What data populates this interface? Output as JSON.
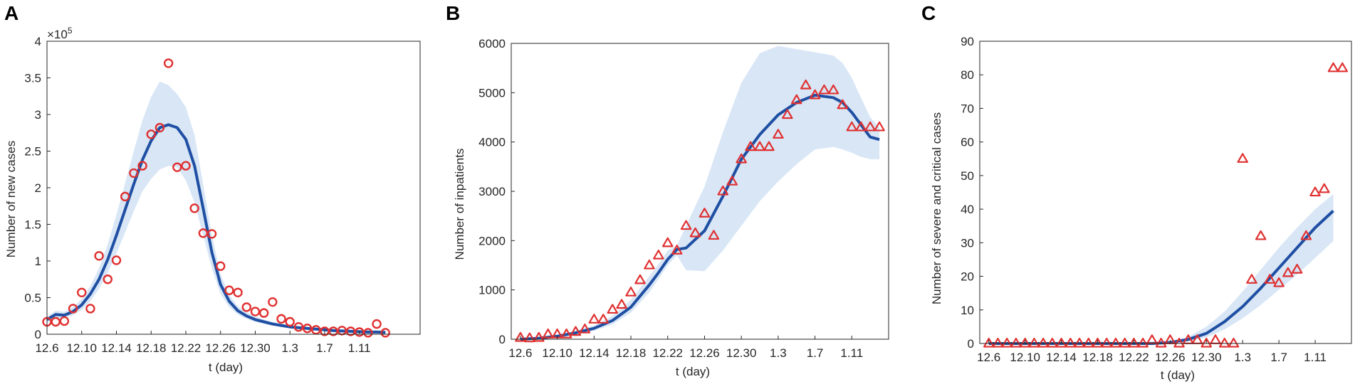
{
  "colors": {
    "fit": "#1f4fa3",
    "band": "#d8e6f6",
    "marker": "#e03030",
    "axis": "#262626"
  },
  "chart_data": [
    {
      "panel": "A",
      "type": "scatter",
      "marker": "circle",
      "xlabel": "t (day)",
      "ylabel": "Number of new cases",
      "y_exponent_base": "×10",
      "y_exponent_power": "5",
      "xlim": [
        0,
        43
      ],
      "ylim": [
        0,
        4
      ],
      "x_tick_values": [
        0,
        4,
        8,
        12,
        16,
        20,
        24,
        28,
        32,
        36
      ],
      "x_tick_labels": [
        "12.6",
        "12.10",
        "12.14",
        "12.18",
        "12.22",
        "12.26",
        "12.30",
        "1.3",
        "1.7",
        "1.11"
      ],
      "y_tick_values": [
        0,
        0.5,
        1,
        1.5,
        2,
        2.5,
        3,
        3.5,
        4
      ],
      "y_tick_labels": [
        "0",
        "0.5",
        "1",
        "1.5",
        "2",
        "2.5",
        "3",
        "3.5",
        "4"
      ],
      "observed": {
        "x": [
          0,
          1,
          2,
          3,
          4,
          5,
          6,
          7,
          8,
          9,
          10,
          11,
          12,
          13,
          14,
          15,
          16,
          17,
          18,
          19,
          20,
          21,
          22,
          23,
          24,
          25,
          26,
          27,
          28,
          29,
          30,
          31,
          32,
          33,
          34,
          35,
          36,
          37,
          38,
          39
        ],
        "y": [
          0.17,
          0.17,
          0.18,
          0.35,
          0.57,
          0.35,
          1.07,
          0.75,
          1.01,
          1.88,
          2.2,
          2.3,
          2.73,
          2.82,
          3.7,
          2.28,
          2.3,
          1.72,
          1.38,
          1.37,
          0.93,
          0.6,
          0.57,
          0.37,
          0.31,
          0.29,
          0.44,
          0.21,
          0.17,
          0.1,
          0.08,
          0.06,
          0.04,
          0.04,
          0.05,
          0.04,
          0.03,
          0.02,
          0.14,
          0.02
        ]
      },
      "fit": {
        "x": [
          0,
          1,
          2,
          3,
          4,
          5,
          6,
          7,
          8,
          9,
          10,
          11,
          12,
          13,
          14,
          15,
          16,
          17,
          18,
          19,
          20,
          21,
          22,
          23,
          24,
          25,
          26,
          27,
          28,
          29,
          30,
          31,
          32,
          33,
          34,
          35,
          36,
          37,
          38,
          39
        ],
        "y": [
          0.2,
          0.27,
          0.26,
          0.31,
          0.4,
          0.55,
          0.75,
          1.02,
          1.35,
          1.7,
          2.05,
          2.38,
          2.64,
          2.82,
          2.86,
          2.82,
          2.66,
          2.3,
          1.72,
          1.12,
          0.68,
          0.45,
          0.32,
          0.25,
          0.2,
          0.17,
          0.14,
          0.12,
          0.1,
          0.09,
          0.08,
          0.07,
          0.06,
          0.05,
          0.045,
          0.04,
          0.035,
          0.03,
          0.03,
          0.025
        ]
      },
      "band": {
        "x": [
          0,
          1,
          2,
          3,
          4,
          5,
          6,
          7,
          8,
          9,
          10,
          11,
          12,
          13,
          14,
          15,
          16,
          17,
          18,
          19,
          20,
          21,
          22,
          23,
          24,
          25,
          26,
          27,
          28,
          29,
          30,
          31,
          32,
          33,
          34,
          35,
          36,
          37,
          38,
          39
        ],
        "lower": [
          0.16,
          0.22,
          0.22,
          0.26,
          0.33,
          0.45,
          0.62,
          0.84,
          1.1,
          1.39,
          1.68,
          1.95,
          2.12,
          2.25,
          2.3,
          2.28,
          2.1,
          1.8,
          1.35,
          0.9,
          0.55,
          0.37,
          0.27,
          0.21,
          0.17,
          0.14,
          0.12,
          0.1,
          0.08,
          0.07,
          0.06,
          0.05,
          0.045,
          0.04,
          0.035,
          0.03,
          0.025,
          0.02,
          0.02,
          0.02
        ],
        "upper": [
          0.24,
          0.32,
          0.31,
          0.37,
          0.48,
          0.66,
          0.9,
          1.23,
          1.63,
          2.06,
          2.5,
          2.92,
          3.24,
          3.45,
          3.4,
          3.28,
          3.1,
          2.72,
          2.05,
          1.35,
          0.82,
          0.54,
          0.38,
          0.3,
          0.24,
          0.2,
          0.17,
          0.14,
          0.12,
          0.11,
          0.1,
          0.09,
          0.075,
          0.065,
          0.055,
          0.05,
          0.045,
          0.04,
          0.04,
          0.035
        ]
      }
    },
    {
      "panel": "B",
      "type": "scatter",
      "marker": "triangle",
      "xlabel": "t (day)",
      "ylabel": "Number of inpatients",
      "xlim": [
        -1,
        40
      ],
      "ylim": [
        0,
        6000
      ],
      "x_tick_values": [
        0,
        4,
        8,
        12,
        16,
        20,
        24,
        28,
        32,
        36
      ],
      "x_tick_labels": [
        "12.6",
        "12.10",
        "12.14",
        "12.18",
        "12.22",
        "12.26",
        "12.30",
        "1.3",
        "1.7",
        "1.11"
      ],
      "y_tick_values": [
        0,
        1000,
        2000,
        3000,
        4000,
        5000,
        6000
      ],
      "y_tick_labels": [
        "0",
        "1000",
        "2000",
        "3000",
        "4000",
        "5000",
        "6000"
      ],
      "observed": {
        "x": [
          0,
          1,
          2,
          3,
          4,
          5,
          6,
          7,
          8,
          9,
          10,
          11,
          12,
          13,
          14,
          15,
          16,
          17,
          18,
          19,
          20,
          21,
          22,
          23,
          24,
          25,
          26,
          27,
          28,
          29,
          30,
          31,
          32,
          33,
          34,
          35,
          36,
          37,
          38,
          39
        ],
        "y": [
          30,
          20,
          30,
          100,
          100,
          100,
          150,
          200,
          400,
          400,
          600,
          700,
          950,
          1200,
          1500,
          1700,
          1950,
          1800,
          2300,
          2150,
          2550,
          2100,
          3000,
          3200,
          3650,
          3900,
          3900,
          3900,
          4150,
          4550,
          4850,
          5150,
          4950,
          5050,
          5050,
          4750,
          4300,
          4300,
          4300,
          4300
        ]
      },
      "fit": {
        "x": [
          0,
          2,
          4,
          6,
          8,
          10,
          12,
          14,
          15,
          16,
          17,
          18,
          20,
          22,
          24,
          26,
          28,
          30,
          32,
          34,
          35,
          36,
          37,
          38,
          39
        ],
        "y": [
          0,
          20,
          60,
          130,
          220,
          380,
          650,
          1100,
          1350,
          1620,
          1820,
          1850,
          2200,
          2900,
          3650,
          4150,
          4550,
          4800,
          4950,
          4900,
          4800,
          4600,
          4350,
          4100,
          4050
        ]
      },
      "band": {
        "x": [
          0,
          2,
          4,
          6,
          8,
          10,
          12,
          14,
          15,
          16,
          17,
          18,
          20,
          22,
          24,
          26,
          28,
          30,
          32,
          34,
          35,
          36,
          37,
          38,
          39
        ],
        "lower": [
          0,
          15,
          45,
          100,
          170,
          300,
          540,
          950,
          1220,
          1500,
          1700,
          1400,
          1380,
          1800,
          2300,
          2800,
          3200,
          3550,
          3850,
          3900,
          3850,
          3780,
          3700,
          3650,
          3650
        ],
        "upper": [
          0,
          30,
          80,
          170,
          280,
          470,
          800,
          1280,
          1520,
          1800,
          1900,
          2300,
          3100,
          4200,
          5200,
          5800,
          5950,
          5880,
          5820,
          5750,
          5600,
          5300,
          4900,
          4500,
          4300
        ]
      }
    },
    {
      "panel": "C",
      "type": "scatter",
      "marker": "triangle",
      "xlabel": "t (day)",
      "ylabel": "Number of severe and critical cases",
      "xlim": [
        -1,
        40
      ],
      "ylim": [
        0,
        90
      ],
      "x_tick_values": [
        0,
        4,
        8,
        12,
        16,
        20,
        24,
        28,
        32,
        36
      ],
      "x_tick_labels": [
        "12.6",
        "12.10",
        "12.14",
        "12.18",
        "12.22",
        "12.26",
        "12.30",
        "1.3",
        "1.7",
        "1.11"
      ],
      "y_tick_values": [
        0,
        10,
        20,
        30,
        40,
        50,
        60,
        70,
        80,
        90
      ],
      "y_tick_labels": [
        "0",
        "10",
        "20",
        "30",
        "40",
        "50",
        "60",
        "70",
        "80",
        "90"
      ],
      "observed": {
        "x": [
          0,
          1,
          2,
          3,
          4,
          5,
          6,
          7,
          8,
          9,
          10,
          11,
          12,
          13,
          14,
          15,
          16,
          17,
          18,
          19,
          20,
          21,
          22,
          23,
          24,
          25,
          26,
          27,
          28,
          29,
          30,
          31,
          32,
          33,
          34,
          35,
          36,
          37,
          38,
          39
        ],
        "y": [
          0,
          0,
          0,
          0,
          0,
          0,
          0,
          0,
          0,
          0,
          0,
          0,
          0,
          0,
          0,
          0,
          0,
          0,
          1,
          0,
          1,
          0,
          1,
          1,
          0,
          1,
          0,
          0,
          55,
          19,
          32,
          19,
          18,
          21,
          22,
          32,
          45,
          46,
          82,
          82
        ]
      },
      "fit": {
        "x": [
          0,
          5,
          10,
          15,
          18,
          20,
          22,
          24,
          26,
          28,
          30,
          32,
          34,
          36,
          38
        ],
        "y": [
          0,
          0,
          0,
          0,
          0,
          0.3,
          1.2,
          3,
          6.5,
          11,
          16.5,
          22.5,
          28.5,
          34.5,
          39.5
        ]
      },
      "band": {
        "x": [
          0,
          5,
          10,
          15,
          18,
          20,
          22,
          24,
          26,
          28,
          30,
          32,
          34,
          36,
          38
        ],
        "lower": [
          0,
          0,
          0,
          0,
          0,
          0.1,
          0.6,
          1.8,
          4.2,
          7.5,
          11.5,
          16,
          20.5,
          25.5,
          30.5
        ],
        "upper": [
          0,
          0,
          0,
          0,
          0,
          0.6,
          2,
          5,
          9.5,
          15.5,
          22,
          28.5,
          34.5,
          40,
          44.5
        ]
      }
    }
  ]
}
